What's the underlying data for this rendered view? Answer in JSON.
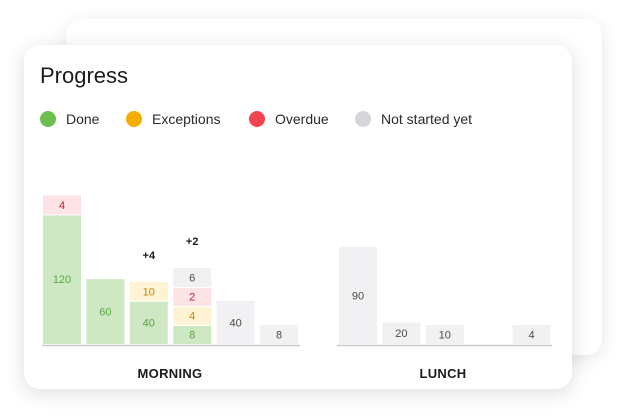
{
  "title": "Progress",
  "legend": [
    {
      "label": "Done",
      "color": "#6cbf4f"
    },
    {
      "label": "Exceptions",
      "color": "#f5ad00"
    },
    {
      "label": "Overdue",
      "color": "#f2454f"
    },
    {
      "label": "Not started yet",
      "color": "#d6d5d9"
    }
  ],
  "chart_data": {
    "type": "bar",
    "stacked": true,
    "groups": [
      {
        "label": "MORNING",
        "bars": [
          {
            "segments": [
              {
                "series": "Done",
                "value": 120
              },
              {
                "series": "Overdue",
                "value": 4
              }
            ]
          },
          {
            "segments": [
              {
                "series": "Done",
                "value": 60
              }
            ]
          },
          {
            "extra": "+4",
            "segments": [
              {
                "series": "Done",
                "value": 40
              },
              {
                "series": "Exceptions",
                "value": 10
              }
            ]
          },
          {
            "extra": "+2",
            "segments": [
              {
                "series": "Done",
                "value": 8
              },
              {
                "series": "Exceptions",
                "value": 4
              },
              {
                "series": "Overdue",
                "value": 2
              },
              {
                "series": "Not started yet",
                "value": 6
              }
            ]
          },
          {
            "segments": [
              {
                "series": "Not started yet",
                "value": 40
              }
            ]
          },
          {
            "segments": [
              {
                "series": "Not started yet",
                "value": 8
              }
            ]
          }
        ]
      },
      {
        "label": "LUNCH",
        "bars": [
          {
            "segments": [
              {
                "series": "Not started yet",
                "value": 90
              }
            ]
          },
          {
            "segments": [
              {
                "series": "Not started yet",
                "value": 20
              }
            ]
          },
          {
            "segments": [
              {
                "series": "Not started yet",
                "value": 10
              }
            ]
          },
          {
            "segments": []
          },
          {
            "segments": [
              {
                "series": "Not started yet",
                "value": 4
              }
            ]
          }
        ]
      }
    ]
  }
}
